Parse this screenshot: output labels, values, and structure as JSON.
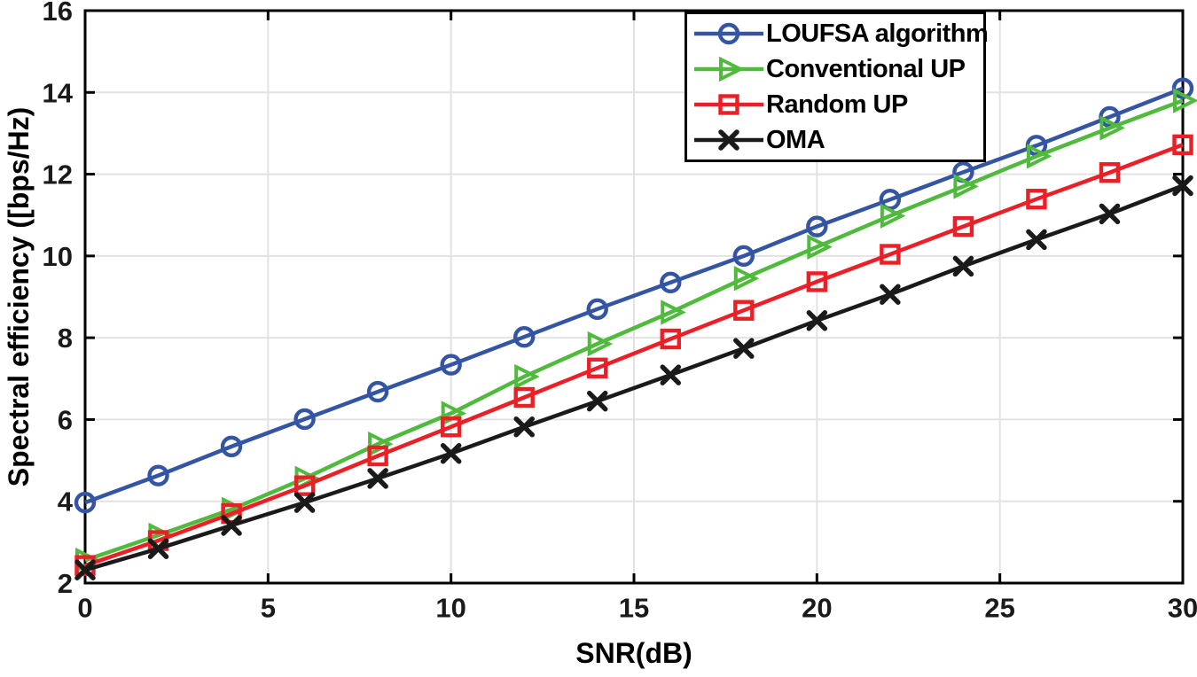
{
  "chart_data": {
    "type": "line",
    "title": "",
    "xlabel": "SNR(dB)",
    "ylabel": "Spectral efficiency ([bps/Hz)",
    "xlim": [
      0,
      30
    ],
    "ylim": [
      2,
      16
    ],
    "xticks": [
      0,
      5,
      10,
      15,
      20,
      25,
      30
    ],
    "yticks": [
      2,
      4,
      6,
      8,
      10,
      12,
      14,
      16
    ],
    "grid": true,
    "box": true,
    "legend_position": "top-right",
    "x": [
      0,
      2,
      4,
      6,
      8,
      10,
      12,
      14,
      16,
      18,
      20,
      22,
      24,
      26,
      28,
      30
    ],
    "series": [
      {
        "name": "LOUFSA algorithm",
        "color": "#3454A4",
        "marker": "circle",
        "values": [
          3.97,
          4.63,
          5.34,
          6.01,
          6.68,
          7.34,
          8.02,
          8.7,
          9.35,
          10.0,
          10.72,
          11.38,
          12.05,
          12.7,
          13.4,
          14.1
        ]
      },
      {
        "name": "Conventional UP",
        "color": "#4FBA3C",
        "marker": "triangle-right",
        "values": [
          2.56,
          3.17,
          3.8,
          4.56,
          5.4,
          6.15,
          7.05,
          7.85,
          8.62,
          9.45,
          10.22,
          10.98,
          11.7,
          12.44,
          13.13,
          13.8
        ]
      },
      {
        "name": "Random UP",
        "color": "#EB2027",
        "marker": "square",
        "values": [
          2.43,
          3.04,
          3.7,
          4.38,
          5.11,
          5.82,
          6.54,
          7.26,
          7.97,
          8.67,
          9.37,
          10.04,
          10.72,
          11.39,
          12.04,
          12.72
        ]
      },
      {
        "name": "OMA",
        "color": "#1A1A1A",
        "marker": "x",
        "values": [
          2.32,
          2.84,
          3.41,
          3.97,
          4.56,
          5.17,
          5.82,
          6.45,
          7.09,
          7.74,
          8.42,
          9.06,
          9.75,
          10.4,
          11.03,
          11.72
        ]
      }
    ]
  },
  "colors": {
    "background": "#FFFFFF",
    "grid": "#E2E2E2",
    "axis": "#000000",
    "tick_label": "#1A1A1A",
    "legend_border": "#000000",
    "legend_background": "#FFFFFF"
  }
}
